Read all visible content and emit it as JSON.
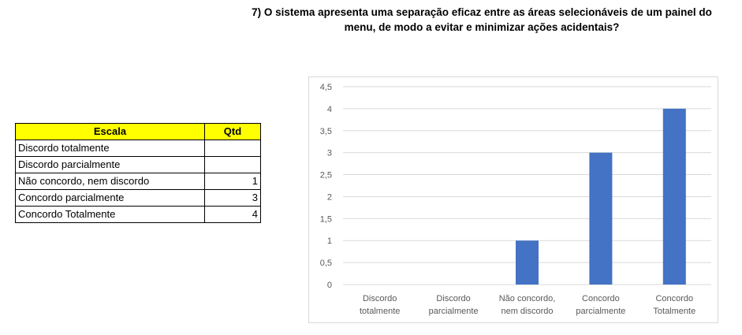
{
  "title_line1": "7) O sistema apresenta uma separação eficaz entre as áreas selecionáveis de um painel do",
  "title_line2": "menu, de modo a evitar e minimizar ações acidentais?",
  "table": {
    "header": {
      "scale": "Escala",
      "qty": "Qtd"
    },
    "rows": [
      {
        "label": "Discordo totalmente",
        "qty": ""
      },
      {
        "label": "Discordo parcialmente",
        "qty": ""
      },
      {
        "label": "Não concordo, nem discordo",
        "qty": "1"
      },
      {
        "label": "Concordo parcialmente",
        "qty": "3"
      },
      {
        "label": "Concordo Totalmente",
        "qty": "4"
      }
    ]
  },
  "colors": {
    "header_bg": "#ffff00",
    "bar": "#4472c4",
    "grid": "#d9d9d9",
    "tick_text": "#595959"
  },
  "chart_data": {
    "type": "bar",
    "categories": [
      [
        "Discordo",
        "totalmente"
      ],
      [
        "Discordo",
        "parcialmente"
      ],
      [
        "Não concordo,",
        "nem discordo"
      ],
      [
        "Concordo",
        "parcialmente"
      ],
      [
        "Concordo",
        "Totalmente"
      ]
    ],
    "values": [
      0,
      0,
      1,
      3,
      4
    ],
    "ylim": [
      0,
      4.5
    ],
    "yticks": [
      "0",
      "0,5",
      "1",
      "1,5",
      "2",
      "2,5",
      "3",
      "3,5",
      "4",
      "4,5"
    ],
    "grid": true,
    "legend": "none"
  }
}
